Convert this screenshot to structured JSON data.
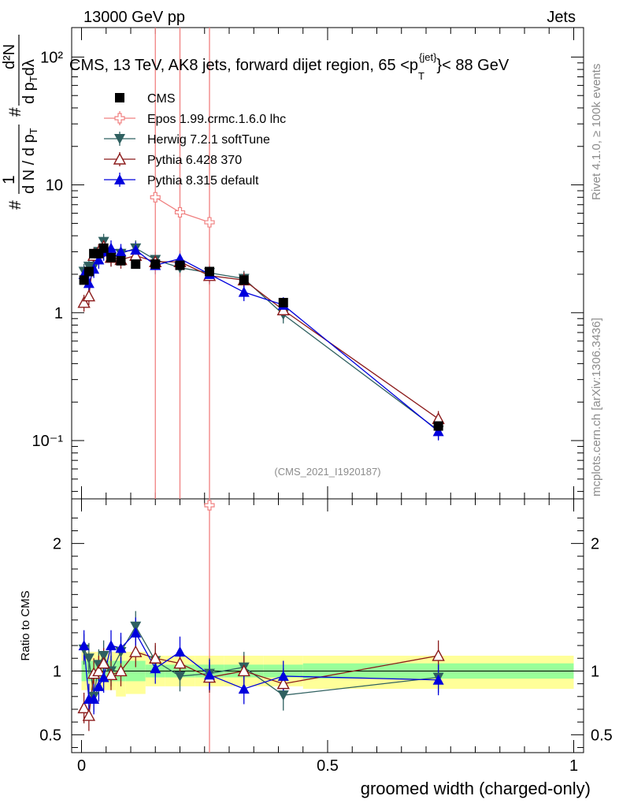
{
  "header": {
    "left": "13000 GeV pp",
    "right": "Jets"
  },
  "side_labels": {
    "rivet": "Rivet 4.1.0, ≥ 100k events",
    "mcplots": "mcplots.cern.ch [arXiv:1306.3436]"
  },
  "chart_data": {
    "type": "line",
    "title": "CMS, 13 TeV, AK8 jets, forward dijet region, 65 <p_T^{jet}< 88 GeV",
    "title_text": "CMS, 13 TeV, AK8 jets, forward dijet region, 65 <p",
    "title_sup": "{jet}",
    "title_sub": "T",
    "title_end": "}< 88 GeV",
    "watermark": "(CMS_2021_I1920187)",
    "xlabel": "groomed width (charged-only)",
    "ylabel": "1/N dN/dλ (# / d p_T)",
    "ylabel_parts": {
      "main": "d N / d p",
      "sub": "T",
      "frac_top": "1",
      "hash": "#",
      "inner_num": "d²N",
      "inner_den": "d p",
      "inner_den_sub": "T",
      "inner_den_end": "dλ",
      "inner_hash": "#"
    },
    "ratio_ylabel": "Ratio to CMS",
    "xlim": [
      -0.02,
      1.02
    ],
    "ylim_main": [
      0.035,
      170
    ],
    "ylim_ratio": [
      0.36,
      2.35
    ],
    "yscale_main": "log",
    "x_ticks": [
      "0",
      "0.5",
      "1"
    ],
    "x_tick_values": [
      0,
      0.5,
      1
    ],
    "y_ticks_main": [
      "10⁻¹",
      "1",
      "10",
      "10²"
    ],
    "y_tick_values_main": [
      0.1,
      1,
      10,
      100
    ],
    "y_ticks_ratio": [
      "0.5",
      "1",
      "2"
    ],
    "y_tick_values_ratio": [
      0.5,
      1,
      2
    ],
    "legend": [
      {
        "name": "CMS",
        "color": "#000000",
        "marker": "square"
      },
      {
        "name": "Epos 1.99.crmc.1.6.0 lhc",
        "color": "#f08080",
        "marker": "cross-open"
      },
      {
        "name": "Herwig 7.2.1 softTune",
        "color": "#2f6060",
        "marker": "triangle-down"
      },
      {
        "name": "Pythia 6.428 370",
        "color": "#8b1a1a",
        "marker": "triangle-open"
      },
      {
        "name": "Pythia 8.315 default",
        "color": "#0000dd",
        "marker": "triangle-up"
      }
    ],
    "series": [
      {
        "name": "CMS",
        "x": [
          0.005,
          0.015,
          0.025,
          0.035,
          0.045,
          0.06,
          0.08,
          0.11,
          0.15,
          0.2,
          0.26,
          0.33,
          0.41,
          0.725
        ],
        "y": [
          1.8,
          2.1,
          2.9,
          2.9,
          3.2,
          2.7,
          2.55,
          2.4,
          2.4,
          2.35,
          2.1,
          1.8,
          1.2,
          0.13
        ]
      },
      {
        "name": "Epos 1.99.crmc.1.6.0 lhc",
        "x": [
          0.15,
          0.2,
          0.26
        ],
        "y": [
          8.0,
          6.1,
          5.1
        ],
        "err": [
          [
            0.03,
            200
          ],
          [
            0.03,
            200
          ],
          [
            0.03,
            200
          ]
        ]
      },
      {
        "name": "Herwig 7.2.1 softTune",
        "x": [
          0.005,
          0.015,
          0.025,
          0.035,
          0.045,
          0.06,
          0.08,
          0.11,
          0.15,
          0.2,
          0.26,
          0.33,
          0.41,
          0.725
        ],
        "y": [
          2.1,
          2.3,
          2.3,
          3.0,
          3.6,
          2.7,
          2.9,
          3.2,
          2.6,
          2.25,
          2.05,
          1.85,
          0.97,
          0.12
        ]
      },
      {
        "name": "Pythia 6.428 370",
        "x": [
          0.005,
          0.015,
          0.025,
          0.035,
          0.045,
          0.06,
          0.08,
          0.11,
          0.15,
          0.2,
          0.26,
          0.33,
          0.41,
          0.725
        ],
        "y": [
          1.2,
          1.35,
          2.8,
          3.0,
          3.3,
          2.7,
          2.6,
          2.8,
          2.5,
          2.5,
          1.95,
          1.8,
          1.05,
          0.148
        ]
      },
      {
        "name": "Pythia 8.315 default",
        "x": [
          0.005,
          0.015,
          0.025,
          0.035,
          0.045,
          0.06,
          0.08,
          0.11,
          0.15,
          0.2,
          0.26,
          0.33,
          0.41,
          0.725
        ],
        "y": [
          2.0,
          1.7,
          2.2,
          2.6,
          3.0,
          3.2,
          3.0,
          3.1,
          2.35,
          2.65,
          2.0,
          1.45,
          1.15,
          0.118
        ]
      }
    ],
    "ratio_series": [
      {
        "name": "Epos 1.99.crmc.1.6.0 lhc",
        "x": [
          0.26
        ],
        "y": [
          2.3
        ]
      },
      {
        "name": "Herwig 7.2.1 softTune",
        "x": [
          0.005,
          0.015,
          0.025,
          0.035,
          0.045,
          0.06,
          0.08,
          0.11,
          0.15,
          0.2,
          0.26,
          0.33,
          0.41,
          0.725
        ],
        "y": [
          1.17,
          1.1,
          0.8,
          1.05,
          1.12,
          1.0,
          1.15,
          1.35,
          1.08,
          0.96,
          0.98,
          1.03,
          0.81,
          0.95
        ]
      },
      {
        "name": "Pythia 6.428 370",
        "x": [
          0.005,
          0.015,
          0.025,
          0.035,
          0.045,
          0.06,
          0.08,
          0.11,
          0.15,
          0.2,
          0.26,
          0.33,
          0.41,
          0.725
        ],
        "y": [
          0.71,
          0.65,
          0.98,
          1.0,
          1.06,
          0.97,
          1.0,
          1.15,
          1.1,
          1.06,
          0.95,
          1.0,
          0.9,
          1.12
        ]
      },
      {
        "name": "Pythia 8.315 default",
        "x": [
          0.005,
          0.015,
          0.025,
          0.035,
          0.045,
          0.06,
          0.08,
          0.11,
          0.15,
          0.2,
          0.26,
          0.33,
          0.41,
          0.725
        ],
        "y": [
          1.2,
          0.78,
          0.78,
          0.88,
          0.95,
          1.2,
          1.18,
          1.3,
          1.02,
          1.15,
          0.97,
          0.86,
          0.96,
          0.93
        ]
      }
    ],
    "uncertainty_bands": {
      "x_edges": [
        0.0,
        0.01,
        0.02,
        0.03,
        0.04,
        0.05,
        0.07,
        0.09,
        0.13,
        0.17,
        0.23,
        0.29,
        0.37,
        0.45,
        1.0
      ],
      "stat_low": [
        0.92,
        0.92,
        0.92,
        0.92,
        0.92,
        0.92,
        0.92,
        0.92,
        0.95,
        0.95,
        0.95,
        0.95,
        0.95,
        0.94
      ],
      "stat_high": [
        1.08,
        1.08,
        1.08,
        1.08,
        1.08,
        1.08,
        1.08,
        1.08,
        1.05,
        1.05,
        1.05,
        1.05,
        1.05,
        1.06
      ],
      "total_low": [
        0.85,
        0.85,
        0.85,
        0.85,
        0.85,
        0.85,
        0.8,
        0.82,
        0.88,
        0.88,
        0.88,
        0.88,
        0.88,
        0.86
      ],
      "total_high": [
        1.15,
        1.15,
        1.15,
        1.15,
        1.15,
        1.15,
        1.15,
        1.15,
        1.12,
        1.12,
        1.12,
        1.12,
        1.12,
        1.12
      ],
      "stat_color": "#99ff99",
      "total_color": "#ffff99"
    }
  }
}
